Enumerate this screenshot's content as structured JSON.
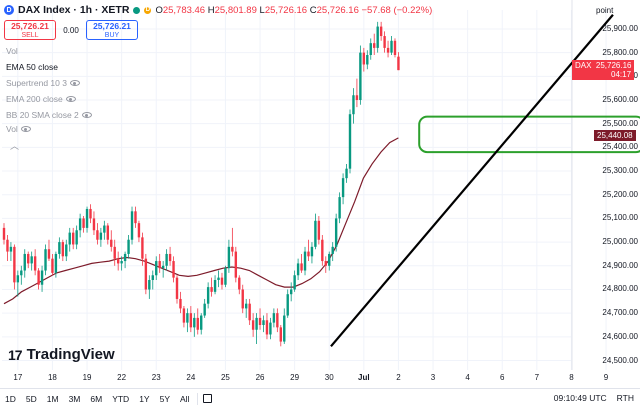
{
  "header": {
    "symbol_icon": "D",
    "title": "DAX Index · 1h · XETR",
    "open_label": "O",
    "open": "25,783.46",
    "high_label": "H",
    "high": "25,801.89",
    "low_label": "L",
    "low": "25,726.16",
    "close_label": "C",
    "close": "25,726.16",
    "change": "−57.68 (−0.22%)"
  },
  "trade": {
    "sell_price": "25,726.21",
    "sell_label": "SELL",
    "spread": "0.00",
    "buy_price": "25,726.21",
    "buy_label": "BUY"
  },
  "indicators": [
    "Vol",
    "EMA 50 close",
    "Supertrend 10 3",
    "EMA 200 close",
    "BB 20 SMA close 2",
    "Vol"
  ],
  "price_tags": {
    "symbol": "DAX",
    "last": "25,726.16",
    "countdown": "04:17",
    "ema": "25,440.08"
  },
  "axis_top_label": "point",
  "logo_text": "TradingView",
  "toolbar": {
    "timeframes": [
      "1D",
      "5D",
      "1M",
      "3M",
      "6M",
      "YTD",
      "1Y",
      "5Y",
      "All"
    ],
    "time": "09:10:49 UTC",
    "session": "RTH"
  },
  "colors": {
    "up": "#089981",
    "down": "#f23645",
    "ema": "#7d1b2a",
    "zone": "#2ca02c",
    "trend": "#000000"
  },
  "chart_data": {
    "type": "candlestick",
    "ylim": [
      24460,
      25980
    ],
    "y_ticks": [
      24500,
      24600,
      24700,
      24800,
      24900,
      25000,
      25100,
      25200,
      25300,
      25400,
      25500,
      25600,
      25700,
      25800,
      25900
    ],
    "y_tick_labels": [
      "24,500.00",
      "24,600.00",
      "24,700.00",
      "24,800.00",
      "24,900.00",
      "25,000.00",
      "25,100.00",
      "25,200.00",
      "25,300.00",
      "25,400.00",
      "25,500.00",
      "25,600.00",
      "25,700.00",
      "25,800.00",
      "25,900.00"
    ],
    "x_ticks": [
      {
        "label": "17",
        "i": 4
      },
      {
        "label": "18",
        "i": 14
      },
      {
        "label": "19",
        "i": 24
      },
      {
        "label": "22",
        "i": 34
      },
      {
        "label": "23",
        "i": 44
      },
      {
        "label": "24",
        "i": 54
      },
      {
        "label": "25",
        "i": 64
      },
      {
        "label": "26",
        "i": 74
      },
      {
        "label": "29",
        "i": 84
      },
      {
        "label": "30",
        "i": 94
      },
      {
        "label": "Jul",
        "i": 104
      },
      {
        "label": "2",
        "i": 114
      },
      {
        "label": "3",
        "i": 124
      },
      {
        "label": "4",
        "i": 134
      },
      {
        "label": "6",
        "i": 144
      },
      {
        "label": "7",
        "i": 154
      },
      {
        "label": "8",
        "i": 164
      },
      {
        "label": "9",
        "i": 174
      }
    ],
    "candles": [
      [
        25060,
        25080,
        24990,
        25010
      ],
      [
        25010,
        25030,
        24920,
        24960
      ],
      [
        24960,
        25000,
        24920,
        24980
      ],
      [
        24980,
        24990,
        24800,
        24830
      ],
      [
        24830,
        24880,
        24770,
        24860
      ],
      [
        24860,
        24900,
        24820,
        24880
      ],
      [
        24880,
        24970,
        24850,
        24950
      ],
      [
        24950,
        24960,
        24890,
        24910
      ],
      [
        24910,
        24960,
        24880,
        24940
      ],
      [
        24940,
        24970,
        24860,
        24880
      ],
      [
        24880,
        24890,
        24800,
        24820
      ],
      [
        24820,
        24900,
        24790,
        24880
      ],
      [
        24880,
        24990,
        24860,
        24970
      ],
      [
        24970,
        25010,
        24920,
        24930
      ],
      [
        24930,
        24950,
        24860,
        24870
      ],
      [
        24870,
        24960,
        24850,
        24950
      ],
      [
        24950,
        25020,
        24930,
        25000
      ],
      [
        25000,
        25010,
        24920,
        24940
      ],
      [
        24940,
        25010,
        24920,
        24990
      ],
      [
        24990,
        25060,
        24960,
        25040
      ],
      [
        25040,
        25060,
        24970,
        24990
      ],
      [
        24990,
        25070,
        24970,
        25050
      ],
      [
        25050,
        25120,
        25020,
        25100
      ],
      [
        25100,
        25110,
        25040,
        25060
      ],
      [
        25060,
        25150,
        25040,
        25140
      ],
      [
        25140,
        25160,
        25080,
        25100
      ],
      [
        25100,
        25130,
        25030,
        25050
      ],
      [
        25050,
        25080,
        24990,
        25010
      ],
      [
        25010,
        25060,
        24980,
        25040
      ],
      [
        25040,
        25090,
        25010,
        25070
      ],
      [
        25070,
        25080,
        24990,
        25010
      ],
      [
        25010,
        25050,
        24960,
        24980
      ],
      [
        24980,
        25010,
        24900,
        24930
      ],
      [
        24930,
        24960,
        24880,
        24910
      ],
      [
        24910,
        24940,
        24880,
        24920
      ],
      [
        24920,
        24960,
        24890,
        24950
      ],
      [
        24950,
        25030,
        24930,
        25010
      ],
      [
        25010,
        25150,
        24990,
        25130
      ],
      [
        25130,
        25150,
        25060,
        25080
      ],
      [
        25080,
        25090,
        25000,
        25020
      ],
      [
        25020,
        25040,
        24900,
        24930
      ],
      [
        24930,
        24950,
        24780,
        24800
      ],
      [
        24800,
        24860,
        24760,
        24840
      ],
      [
        24840,
        24880,
        24800,
        24860
      ],
      [
        24860,
        24940,
        24840,
        24920
      ],
      [
        24920,
        24950,
        24870,
        24890
      ],
      [
        24890,
        24920,
        24850,
        24900
      ],
      [
        24900,
        24970,
        24880,
        24950
      ],
      [
        24950,
        24980,
        24900,
        24920
      ],
      [
        24920,
        24940,
        24830,
        24850
      ],
      [
        24850,
        24860,
        24740,
        24760
      ],
      [
        24760,
        24790,
        24700,
        24720
      ],
      [
        24720,
        24730,
        24640,
        24660
      ],
      [
        24660,
        24720,
        24620,
        24700
      ],
      [
        24700,
        24730,
        24620,
        24640
      ],
      [
        24640,
        24700,
        24600,
        24680
      ],
      [
        24680,
        24720,
        24610,
        24630
      ],
      [
        24630,
        24700,
        24610,
        24690
      ],
      [
        24690,
        24760,
        24680,
        24740
      ],
      [
        24740,
        24830,
        24720,
        24810
      ],
      [
        24810,
        24850,
        24770,
        24790
      ],
      [
        24790,
        24860,
        24780,
        24840
      ],
      [
        24840,
        24880,
        24810,
        24850
      ],
      [
        24850,
        24870,
        24800,
        24820
      ],
      [
        24820,
        24900,
        24810,
        24890
      ],
      [
        24890,
        25010,
        24870,
        24980
      ],
      [
        24980,
        25060,
        24940,
        24960
      ],
      [
        24960,
        24980,
        24830,
        24850
      ],
      [
        24850,
        24860,
        24780,
        24800
      ],
      [
        24800,
        24820,
        24700,
        24720
      ],
      [
        24720,
        24760,
        24680,
        24740
      ],
      [
        24740,
        24760,
        24650,
        24670
      ],
      [
        24670,
        24700,
        24600,
        24630
      ],
      [
        24630,
        24700,
        24570,
        24680
      ],
      [
        24680,
        24720,
        24630,
        24650
      ],
      [
        24650,
        24690,
        24620,
        24670
      ],
      [
        24670,
        24700,
        24590,
        24610
      ],
      [
        24610,
        24680,
        24590,
        24660
      ],
      [
        24660,
        24720,
        24640,
        24700
      ],
      [
        24700,
        24720,
        24620,
        24640
      ],
      [
        24640,
        24650,
        24560,
        24580
      ],
      [
        24580,
        24720,
        24570,
        24690
      ],
      [
        24690,
        24800,
        24680,
        24780
      ],
      [
        24780,
        24830,
        24750,
        24800
      ],
      [
        24800,
        24880,
        24790,
        24860
      ],
      [
        24860,
        24930,
        24840,
        24910
      ],
      [
        24910,
        24950,
        24870,
        24880
      ],
      [
        24880,
        24980,
        24860,
        24960
      ],
      [
        24960,
        25010,
        24920,
        24940
      ],
      [
        24940,
        25000,
        24910,
        24980
      ],
      [
        24980,
        25120,
        24970,
        25090
      ],
      [
        25090,
        25110,
        24990,
        25010
      ],
      [
        25010,
        25030,
        24900,
        24920
      ],
      [
        24920,
        24940,
        24870,
        24900
      ],
      [
        24900,
        24960,
        24880,
        24950
      ],
      [
        24950,
        25000,
        24920,
        24980
      ],
      [
        24980,
        25120,
        24960,
        25100
      ],
      [
        25100,
        25210,
        25080,
        25190
      ],
      [
        25190,
        25290,
        25160,
        25270
      ],
      [
        25270,
        25330,
        25250,
        25310
      ],
      [
        25310,
        25560,
        25290,
        25540
      ],
      [
        25540,
        25650,
        25500,
        25620
      ],
      [
        25620,
        25690,
        25570,
        25600
      ],
      [
        25600,
        25830,
        25580,
        25800
      ],
      [
        25800,
        25820,
        25720,
        25750
      ],
      [
        25750,
        25810,
        25730,
        25790
      ],
      [
        25790,
        25860,
        25770,
        25840
      ],
      [
        25840,
        25880,
        25790,
        25820
      ],
      [
        25820,
        25930,
        25800,
        25910
      ],
      [
        25910,
        25930,
        25850,
        25870
      ],
      [
        25870,
        25890,
        25800,
        25820
      ],
      [
        25820,
        25850,
        25780,
        25800
      ],
      [
        25800,
        25870,
        25790,
        25850
      ],
      [
        25850,
        25860,
        25780,
        25790
      ],
      [
        25783,
        25802,
        25726,
        25726
      ]
    ],
    "ema50": [
      24740,
      24760,
      24790,
      24810,
      24830,
      24850,
      24870,
      24880,
      24890,
      24900,
      24910,
      24915,
      24920,
      24930,
      24935,
      24930,
      24920,
      24905,
      24890,
      24875,
      24860,
      24855,
      24860,
      24870,
      24880,
      24890,
      24895,
      24890,
      24880,
      24860,
      24840,
      24820,
      24810,
      24810,
      24825,
      24845,
      24875,
      24920,
      24990,
      25080,
      25170,
      25270,
      25330,
      25380,
      25420,
      25440
    ],
    "trendline": {
      "from": [
        94.5,
        24560
      ],
      "to": [
        176,
        25960
      ]
    },
    "zone": {
      "x_from": 120,
      "x_to": 185,
      "y_low": 25380,
      "y_high": 25530
    }
  }
}
